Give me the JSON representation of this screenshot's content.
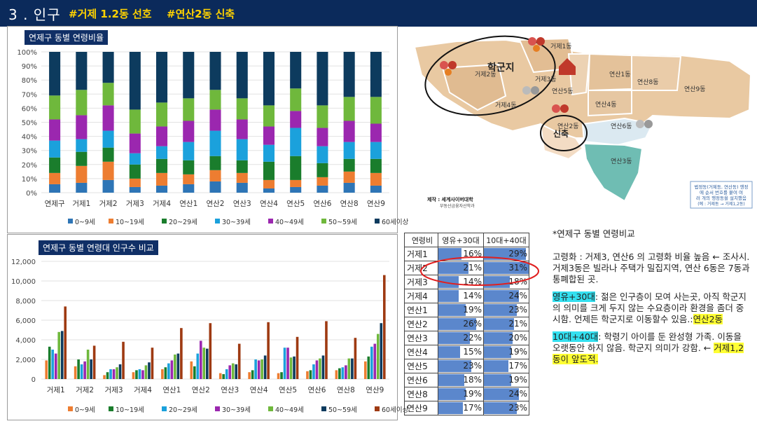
{
  "header": {
    "section": "3 . 인구",
    "tag1": "#거제 1.2동 선호",
    "tag2": "#연산2동 신축"
  },
  "chart1_title": "연제구 동별 연령비율",
  "chart2_title": "연제구 동별 연령대 인구수 비교",
  "chart_data": [
    {
      "type": "bar",
      "stacked": true,
      "title": "연제구 동별 연령비율",
      "categories": [
        "연제구",
        "거제1",
        "거제2",
        "거제3",
        "거제4",
        "연산1",
        "연산2",
        "연산3",
        "연산4",
        "연산5",
        "연산6",
        "연산8",
        "연산9"
      ],
      "ylim": [
        0,
        100
      ],
      "yticks": [
        "0%",
        "10%",
        "20%",
        "30%",
        "40%",
        "50%",
        "60%",
        "70%",
        "80%",
        "90%",
        "100%"
      ],
      "legend_position": "bottom",
      "series": [
        {
          "name": "0~9세",
          "color": "#2e75b6",
          "values": [
            6,
            7,
            9,
            4,
            5,
            6,
            8,
            7,
            3,
            4,
            5,
            7,
            5
          ]
        },
        {
          "name": "10~19세",
          "color": "#ed7d31",
          "values": [
            8,
            12,
            13,
            6,
            9,
            7,
            8,
            7,
            6,
            5,
            6,
            8,
            9
          ]
        },
        {
          "name": "20~29세",
          "color": "#1a7d2c",
          "values": [
            11,
            10,
            10,
            10,
            10,
            10,
            10,
            9,
            13,
            17,
            10,
            9,
            10
          ]
        },
        {
          "name": "30~39세",
          "color": "#1ba1dc",
          "values": [
            12,
            9,
            12,
            8,
            9,
            13,
            18,
            15,
            12,
            20,
            12,
            12,
            12
          ]
        },
        {
          "name": "40~49세",
          "color": "#9b27af",
          "values": [
            15,
            17,
            18,
            14,
            14,
            15,
            15,
            14,
            13,
            12,
            13,
            15,
            13
          ]
        },
        {
          "name": "50~59세",
          "color": "#6fb83c",
          "values": [
            17,
            18,
            16,
            17,
            17,
            16,
            14,
            15,
            15,
            16,
            16,
            17,
            19
          ]
        },
        {
          "name": "60세이상",
          "color": "#0d3b5e",
          "values": [
            31,
            27,
            22,
            41,
            36,
            33,
            27,
            33,
            38,
            26,
            38,
            32,
            32
          ]
        }
      ]
    },
    {
      "type": "bar",
      "title": "연제구 동별 연령대 인구수 비교",
      "categories": [
        "거제1",
        "거제2",
        "거제3",
        "거제4",
        "연산1",
        "연산2",
        "연산3",
        "연산4",
        "연산5",
        "연산6",
        "연산8",
        "연산9"
      ],
      "ylim": [
        0,
        12000
      ],
      "yticks": [
        "0",
        "2,000",
        "4,000",
        "6,000",
        "8,000",
        "10,000",
        "12,000"
      ],
      "legend_position": "bottom",
      "series": [
        {
          "name": "0~9세",
          "color": "#ed7d31",
          "values": [
            1900,
            1300,
            400,
            700,
            1000,
            1800,
            600,
            700,
            600,
            800,
            900,
            1800
          ]
        },
        {
          "name": "10~19세",
          "color": "#1a7d2c",
          "values": [
            3300,
            2000,
            700,
            900,
            1200,
            1300,
            500,
            900,
            700,
            900,
            1100,
            2300
          ]
        },
        {
          "name": "20~29세",
          "color": "#1ba1dc",
          "values": [
            3000,
            1500,
            1000,
            1000,
            1600,
            2600,
            1000,
            2000,
            3200,
            1500,
            1200,
            3300
          ]
        },
        {
          "name": "30~39세",
          "color": "#9b27af",
          "values": [
            2600,
            1800,
            1000,
            900,
            1900,
            3900,
            1400,
            1900,
            3200,
            1900,
            1400,
            3600
          ]
        },
        {
          "name": "40~49세",
          "color": "#6fb83c",
          "values": [
            4800,
            3000,
            1200,
            1400,
            2500,
            3200,
            1600,
            2000,
            2200,
            2100,
            2100,
            4600
          ]
        },
        {
          "name": "50~59세",
          "color": "#0d3b5e",
          "values": [
            4900,
            2000,
            1500,
            1700,
            2600,
            3100,
            1500,
            2400,
            2300,
            2400,
            2100,
            5700
          ]
        },
        {
          "name": "60세이상",
          "color": "#9e3a12",
          "values": [
            7400,
            3400,
            3800,
            3200,
            5200,
            5700,
            3600,
            5800,
            4300,
            5900,
            4200,
            10600
          ]
        }
      ]
    }
  ],
  "map": {
    "labels": [
      "거제1동",
      "거제2동",
      "거제3동",
      "거제4동",
      "연산1동",
      "연산2동",
      "연산3동",
      "연산4동",
      "연산5동",
      "연산6동",
      "연산8동",
      "연산9동"
    ],
    "circle_labels": [
      "학군지",
      "신축"
    ],
    "credit_line1": "제작 : 세계사이버대학",
    "credit_line2": "부동산금융자산학과",
    "note_lines": [
      "법정동(거제동, 연산동) 행정",
      "에 순서    번호를 붙여 여",
      "러 개의 행정동을 설치했음",
      "(예 : 거제동 → 거제1,2동)"
    ]
  },
  "table": {
    "headers": [
      "연령비",
      "영유+30대",
      "10대+40대"
    ],
    "rows": [
      {
        "name": "거제1",
        "a": "16%",
        "av": 16,
        "b": "29%",
        "bv": 29
      },
      {
        "name": "거제2",
        "a": "21%",
        "av": 21,
        "b": "31%",
        "bv": 31
      },
      {
        "name": "거제3",
        "a": "14%",
        "av": 14,
        "b": "18%",
        "bv": 18
      },
      {
        "name": "거제4",
        "a": "14%",
        "av": 14,
        "b": "24%",
        "bv": 24
      },
      {
        "name": "연산1",
        "a": "19%",
        "av": 19,
        "b": "23%",
        "bv": 23
      },
      {
        "name": "연산2",
        "a": "26%",
        "av": 26,
        "b": "21%",
        "bv": 21
      },
      {
        "name": "연산3",
        "a": "22%",
        "av": 22,
        "b": "20%",
        "bv": 20
      },
      {
        "name": "연산4",
        "a": "15%",
        "av": 15,
        "b": "19%",
        "bv": 19
      },
      {
        "name": "연산5",
        "a": "23%",
        "av": 23,
        "b": "17%",
        "bv": 17
      },
      {
        "name": "연산6",
        "a": "18%",
        "av": 18,
        "b": "19%",
        "bv": 19
      },
      {
        "name": "연산8",
        "a": "19%",
        "av": 19,
        "b": "24%",
        "bv": 24
      },
      {
        "name": "연산9",
        "a": "17%",
        "av": 17,
        "b": "23%",
        "bv": 23
      }
    ]
  },
  "notes": {
    "heading": "*연제구  동별 연령비교",
    "p1": "고령화 : 거제3, 연산6 의 고령화 비율 높음 ← 조사시. 거제3동은 빌라나 주택가 밀집지역, 연산 6동은 7동과 통폐합된 곳.",
    "p2_label": "영유+30대",
    "p2_text": ": 젊은 인구층이 모여 사는곳, 아직 학군지의 의미를 크게 두지 않는 수요층이라 환경을 좀더 중시함. 언제든 학군지로 이동할수 있음.:",
    "p2_hl": "연산2동",
    "p3_label": "10대+40대",
    "p3_text": ": 학령기 아이를 둔 완성형 가족. 이동을 오랫동안 하지 않음. 학군지 의미가 강함. ← ",
    "p3_hl": "거제1,2동이 앞도적."
  }
}
